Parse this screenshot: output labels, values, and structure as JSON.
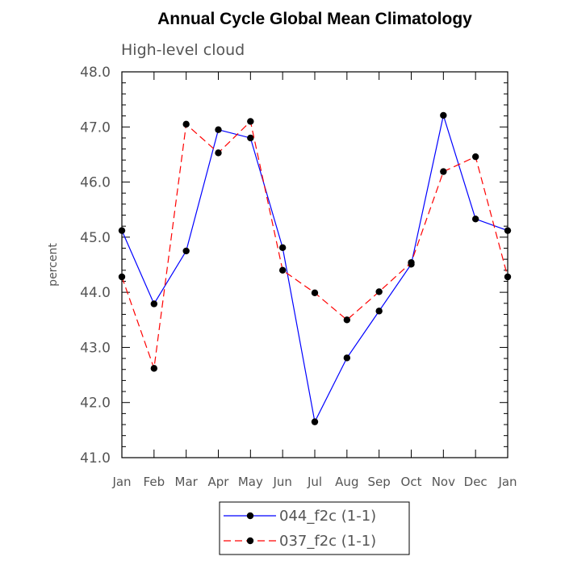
{
  "chart_data": {
    "type": "line",
    "title": "Annual Cycle Global Mean Climatology",
    "subtitle": "High-level cloud",
    "ylabel": "percent",
    "xlabel": "",
    "ylim": [
      41.0,
      48.0
    ],
    "y_ticks": [
      "41.0",
      "42.0",
      "43.0",
      "44.0",
      "45.0",
      "46.0",
      "47.0",
      "48.0"
    ],
    "categories": [
      "Jan",
      "Feb",
      "Mar",
      "Apr",
      "May",
      "Jun",
      "Jul",
      "Aug",
      "Sep",
      "Oct",
      "Nov",
      "Dec",
      "Jan"
    ],
    "series": [
      {
        "name": "044_f2c (1-1)",
        "color": "#0000ff",
        "dash": "solid",
        "values": [
          45.12,
          43.79,
          44.75,
          46.95,
          46.8,
          44.81,
          41.65,
          42.81,
          43.66,
          44.51,
          47.21,
          45.33,
          45.12
        ]
      },
      {
        "name": "037_f2c (1-1)",
        "color": "#ff0000",
        "dash": "dashed",
        "values": [
          44.28,
          42.62,
          47.05,
          46.53,
          47.1,
          44.4,
          43.99,
          43.5,
          44.01,
          44.54,
          46.19,
          46.46,
          44.28
        ]
      }
    ],
    "legend_position": "bottom-center",
    "grid": false
  }
}
